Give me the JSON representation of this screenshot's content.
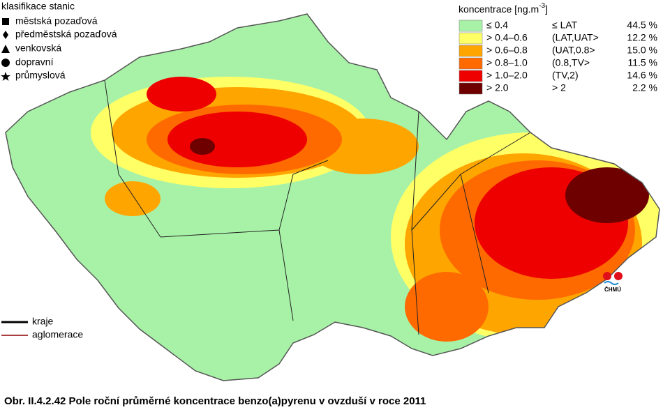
{
  "station_legend": {
    "title": "klasifikace stanic",
    "items": [
      "městská pozaďová",
      "předměstská pozaďová",
      "venkovská",
      "dopravní",
      "průmyslová"
    ]
  },
  "concentration_legend": {
    "title_parts": [
      "koncentrace [ng.m",
      "-3",
      "]"
    ],
    "rows": [
      {
        "range": "≤ 0.4",
        "class": "≤ LAT",
        "share": "44.5 %",
        "color": "#a8f2a8"
      },
      {
        "range": "> 0.4–0.6",
        "class": "(LAT,UAT>",
        "share": "12.2 %",
        "color": "#ffff66"
      },
      {
        "range": "> 0.6–0.8",
        "class": "(UAT,0.8>",
        "share": "15.0 %",
        "color": "#ffa500"
      },
      {
        "range": "> 0.8–1.0",
        "class": "(0.8,TV>",
        "share": "11.5 %",
        "color": "#ff6a00"
      },
      {
        "range": "> 1.0–2.0",
        "class": "(TV,2)",
        "share": "14.6 %",
        "color": "#ee0000"
      },
      {
        "range": "> 2.0",
        "class": "> 2",
        "share": "2.2 %",
        "color": "#6e0000"
      }
    ]
  },
  "line_legend": [
    "kraje",
    "aglomerace"
  ],
  "logo": "ČHMÚ",
  "caption": "Obr. II.4.2.42  Pole roční průměrné koncentrace benzo(a)pyrenu v ovzduší v roce 2011"
}
